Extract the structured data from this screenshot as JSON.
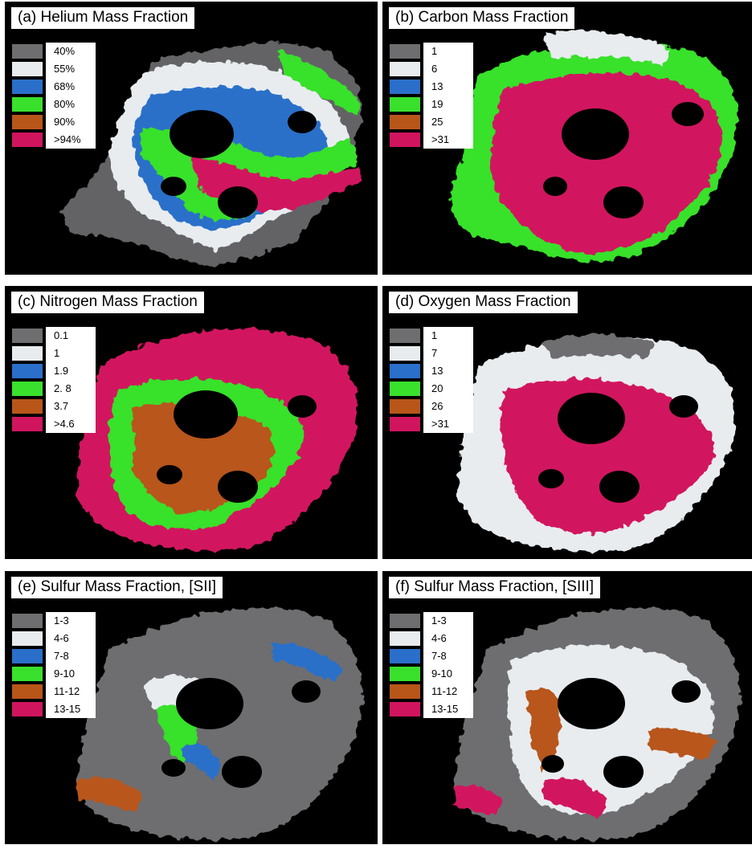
{
  "colors": {
    "background": "#000000",
    "gray": "#6e6e70",
    "white": "#e8ecef",
    "blue": "#2a6fc9",
    "green": "#39e12c",
    "orange": "#b8561a",
    "magenta": "#d1145e"
  },
  "panels": [
    {
      "title": "(a) Helium Mass Fraction",
      "legend": [
        "40%",
        "55%",
        "68%",
        "80%",
        "90%",
        ">94%"
      ]
    },
    {
      "title": "(b) Carbon Mass Fraction",
      "legend": [
        "1",
        "6",
        "13",
        "19",
        "25",
        ">31"
      ]
    },
    {
      "title": "(c) Nitrogen Mass Fraction",
      "legend": [
        "0.1",
        "1",
        "1.9",
        "2. 8",
        "3.7",
        ">4.6"
      ]
    },
    {
      "title": "(d) Oxygen Mass Fraction",
      "legend": [
        "1",
        "7",
        "13",
        "20",
        "26",
        ">31"
      ]
    },
    {
      "title": "(e) Sulfur Mass Fraction, [SII]",
      "legend": [
        "1-3",
        "4-6",
        "7-8",
        "9-10",
        "11-12",
        "13-15"
      ]
    },
    {
      "title": "(f) Sulfur Mass Fraction, [SIII]",
      "legend": [
        "1-3",
        "4-6",
        "7-8",
        "9-10",
        "11-12",
        "13-15"
      ]
    }
  ]
}
